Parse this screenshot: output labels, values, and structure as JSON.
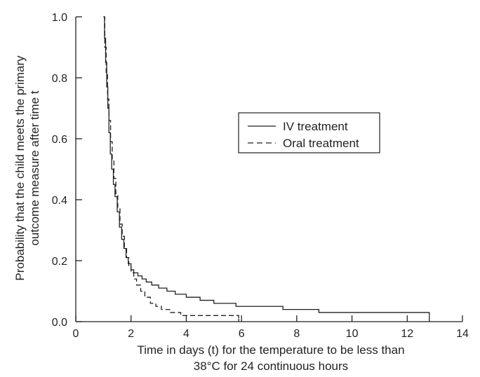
{
  "chart_data": {
    "type": "line",
    "step": true,
    "xlabel": [
      "Time in days (t) for the temperature to be less than",
      "38°C for 24 continuous hours"
    ],
    "ylabel": [
      "Probability that the child meets the primary",
      "outcome measure after time t"
    ],
    "xlim": [
      0,
      14
    ],
    "ylim": [
      0,
      1.0
    ],
    "xticks": [
      0,
      2,
      4,
      6,
      8,
      10,
      12,
      14
    ],
    "yticks": [
      0.0,
      0.2,
      0.4,
      0.6,
      0.8,
      1.0
    ],
    "xtick_labels": [
      "0",
      "2",
      "4",
      "6",
      "8",
      "10",
      "12",
      "14"
    ],
    "ytick_labels": [
      "0.0",
      "0.2",
      "0.4",
      "0.6",
      "0.8",
      "1.0"
    ],
    "grid": false,
    "legend_position": "center-right",
    "series": [
      {
        "name": "IV treatment",
        "dash": "solid",
        "x": [
          1.0,
          1.04,
          1.08,
          1.12,
          1.16,
          1.2,
          1.25,
          1.3,
          1.36,
          1.42,
          1.5,
          1.58,
          1.66,
          1.74,
          1.82,
          1.9,
          2.0,
          2.1,
          2.25,
          2.4,
          2.55,
          2.75,
          3.0,
          3.3,
          3.6,
          4.0,
          4.5,
          5.0,
          5.8,
          7.5,
          8.8,
          12.8
        ],
        "y": [
          1.0,
          0.93,
          0.85,
          0.77,
          0.7,
          0.62,
          0.55,
          0.5,
          0.45,
          0.41,
          0.36,
          0.31,
          0.27,
          0.24,
          0.21,
          0.19,
          0.17,
          0.16,
          0.15,
          0.14,
          0.13,
          0.12,
          0.11,
          0.1,
          0.09,
          0.08,
          0.07,
          0.06,
          0.05,
          0.04,
          0.03,
          0.02
        ]
      },
      {
        "name": "Oral treatment",
        "dash": "dashed",
        "x": [
          1.0,
          1.05,
          1.1,
          1.15,
          1.2,
          1.26,
          1.32,
          1.38,
          1.45,
          1.52,
          1.6,
          1.68,
          1.76,
          1.84,
          1.92,
          2.0,
          2.1,
          2.2,
          2.35,
          2.5,
          2.7,
          2.9,
          3.1,
          3.4,
          3.8,
          5.9
        ],
        "y": [
          1.0,
          0.9,
          0.81,
          0.73,
          0.66,
          0.59,
          0.53,
          0.47,
          0.42,
          0.37,
          0.32,
          0.28,
          0.24,
          0.21,
          0.18,
          0.16,
          0.14,
          0.12,
          0.1,
          0.08,
          0.06,
          0.05,
          0.04,
          0.03,
          0.02,
          0.01
        ]
      }
    ]
  }
}
